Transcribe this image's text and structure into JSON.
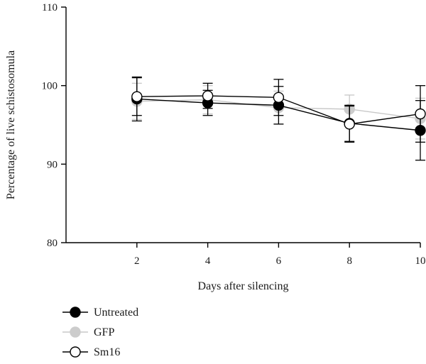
{
  "chart_data": {
    "type": "line",
    "title": "",
    "xlabel": "Days after silencing",
    "ylabel": "Percentage of live schistosomula",
    "x": [
      2,
      4,
      6,
      8,
      10
    ],
    "xticks": [
      "2",
      "4",
      "6",
      "8",
      "10"
    ],
    "xlim": [
      0,
      10
    ],
    "ylim": [
      80,
      110
    ],
    "yticks": [
      "80",
      "90",
      "100",
      "110"
    ],
    "grid": false,
    "legend_position": "bottom-left",
    "series": [
      {
        "name": "Untreated",
        "marker": "filled-circle",
        "color": "#000000",
        "line_color": "#000000",
        "values": [
          98.3,
          97.8,
          97.5,
          95.2,
          94.3
        ],
        "error": [
          2.8,
          1.6,
          2.4,
          2.3,
          3.8
        ]
      },
      {
        "name": "GFP",
        "marker": "filled-circle",
        "color": "#cccccc",
        "line_color": "#c8c8c8",
        "values": [
          98.0,
          98.2,
          97.2,
          97.0,
          95.8
        ],
        "error": [
          2.3,
          1.8,
          2.1,
          1.8,
          2.6
        ]
      },
      {
        "name": "Sm16",
        "marker": "open-circle",
        "color": "#ffffff",
        "line_color": "#000000",
        "values": [
          98.6,
          98.7,
          98.5,
          95.1,
          96.4
        ],
        "error": [
          2.4,
          1.6,
          2.3,
          2.3,
          3.6
        ]
      }
    ]
  }
}
